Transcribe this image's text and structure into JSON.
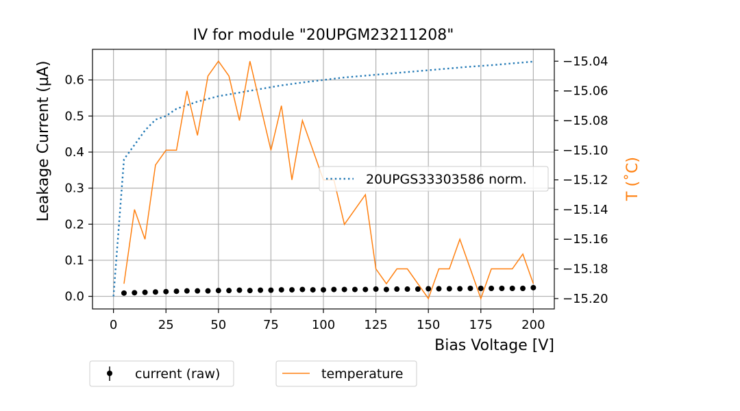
{
  "chart_data": {
    "type": "line",
    "title": "IV for module \"20UPGM23211208\"",
    "xlabel": "Bias Voltage [V]",
    "ylabel": "Leakage Current (µA)",
    "y2label": "T (˚C)",
    "xlim": [
      -10,
      210
    ],
    "ylim": [
      -0.035,
      0.685
    ],
    "y2lim": [
      -15.207,
      -15.032
    ],
    "xticks": [
      0,
      25,
      50,
      75,
      100,
      125,
      150,
      175,
      200
    ],
    "yticks": [
      0.0,
      0.1,
      0.2,
      0.3,
      0.4,
      0.5,
      0.6
    ],
    "ytick_labels": [
      "0.0",
      "0.1",
      "0.2",
      "0.3",
      "0.4",
      "0.5",
      "0.6"
    ],
    "y2ticks": [
      -15.2,
      -15.18,
      -15.16,
      -15.14,
      -15.12,
      -15.1,
      -15.08,
      -15.06,
      -15.04
    ],
    "y2tick_labels": [
      "−15.20",
      "−15.18",
      "−15.16",
      "−15.14",
      "−15.12",
      "−15.10",
      "−15.08",
      "−15.06",
      "−15.04"
    ],
    "grid": true,
    "colors": {
      "reference": "#1f77b4",
      "current": "#000000",
      "temperature": "#ff7f0e",
      "grid": "#b0b0b0"
    },
    "series": [
      {
        "name": "20UPGS33303586 norm.",
        "style": "dotted",
        "axis": "left",
        "x": [
          0,
          5,
          10,
          15,
          20,
          25,
          30,
          40,
          50,
          60,
          70,
          80,
          90,
          100,
          110,
          120,
          130,
          140,
          150,
          160,
          170,
          180,
          190,
          200
        ],
        "y": [
          0.0,
          0.38,
          0.42,
          0.46,
          0.49,
          0.5,
          0.52,
          0.54,
          0.555,
          0.565,
          0.575,
          0.585,
          0.593,
          0.6,
          0.607,
          0.612,
          0.617,
          0.622,
          0.627,
          0.632,
          0.637,
          0.641,
          0.646,
          0.651
        ]
      },
      {
        "name": "current (raw)",
        "style": "markers",
        "axis": "left",
        "x": [
          5,
          10,
          15,
          20,
          25,
          30,
          35,
          40,
          45,
          50,
          55,
          60,
          65,
          70,
          75,
          80,
          85,
          90,
          95,
          100,
          105,
          110,
          115,
          120,
          125,
          130,
          135,
          140,
          145,
          150,
          155,
          160,
          165,
          170,
          175,
          180,
          185,
          190,
          195,
          200
        ],
        "y": [
          0.009,
          0.01,
          0.011,
          0.012,
          0.013,
          0.014,
          0.015,
          0.015,
          0.015,
          0.016,
          0.016,
          0.017,
          0.016,
          0.017,
          0.017,
          0.018,
          0.018,
          0.019,
          0.018,
          0.018,
          0.019,
          0.019,
          0.019,
          0.019,
          0.02,
          0.019,
          0.02,
          0.02,
          0.02,
          0.021,
          0.021,
          0.021,
          0.021,
          0.022,
          0.022,
          0.022,
          0.022,
          0.022,
          0.022,
          0.024
        ]
      },
      {
        "name": "temperature",
        "style": "solid",
        "axis": "right",
        "x": [
          5,
          10,
          15,
          20,
          25,
          30,
          35,
          40,
          45,
          50,
          55,
          60,
          65,
          70,
          75,
          80,
          85,
          90,
          95,
          100,
          105,
          110,
          115,
          120,
          125,
          130,
          135,
          140,
          145,
          150,
          155,
          160,
          165,
          170,
          175,
          180,
          185,
          190,
          195,
          200
        ],
        "y": [
          -15.19,
          -15.14,
          -15.16,
          -15.11,
          -15.1,
          -15.1,
          -15.06,
          -15.09,
          -15.05,
          -15.04,
          -15.05,
          -15.08,
          -15.04,
          -15.07,
          -15.1,
          -15.07,
          -15.12,
          -15.08,
          -15.1,
          -15.12,
          -15.12,
          -15.15,
          -15.14,
          -15.13,
          -15.18,
          -15.19,
          -15.18,
          -15.18,
          -15.19,
          -15.2,
          -15.18,
          -15.18,
          -15.16,
          -15.18,
          -15.2,
          -15.18,
          -15.18,
          -15.18,
          -15.17,
          -15.19
        ]
      }
    ],
    "legends": {
      "inner": {
        "label": "20UPGS33303586 norm.",
        "placement": "center-right"
      },
      "bottom_left": {
        "label": "current (raw)"
      },
      "bottom_center": {
        "label": "temperature"
      }
    }
  }
}
